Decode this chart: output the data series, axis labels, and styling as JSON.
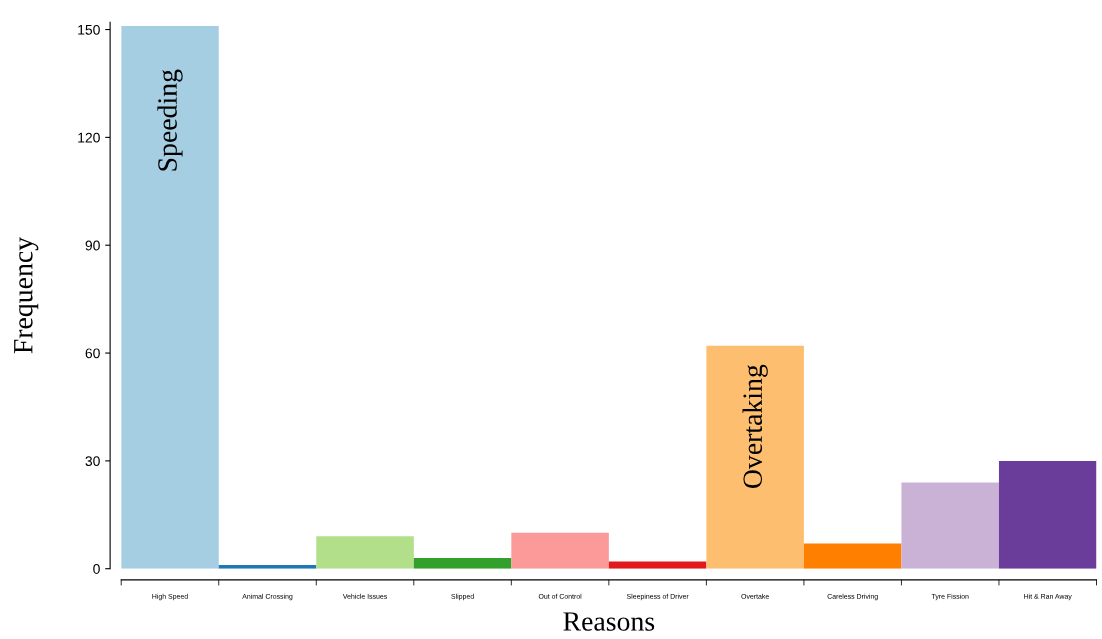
{
  "chart_data": {
    "type": "bar",
    "xlabel": "Reasons",
    "ylabel": "Frequency",
    "categories": [
      "High Speed",
      "Animal Crossing",
      "Vehicle Issues",
      "Slipped",
      "Out of Control",
      "Sleepiness of Driver",
      "Overtake",
      "Careless Driving",
      "Tyre Fission",
      "Hit & Ran Away"
    ],
    "values": [
      151,
      1,
      9,
      3,
      10,
      2,
      62,
      7,
      24,
      30
    ],
    "colors": [
      "#a6cee3",
      "#1f78b4",
      "#b2df8a",
      "#33a02c",
      "#fb9a99",
      "#e31a1c",
      "#fdbf6f",
      "#ff7f00",
      "#cab2d6",
      "#6a3d9a"
    ],
    "ylim": [
      0,
      152
    ],
    "yticks": [
      0,
      30,
      60,
      90,
      120,
      150
    ],
    "grid": false,
    "legend": false,
    "annotations": [
      "Speeding",
      "Overtaking"
    ]
  }
}
